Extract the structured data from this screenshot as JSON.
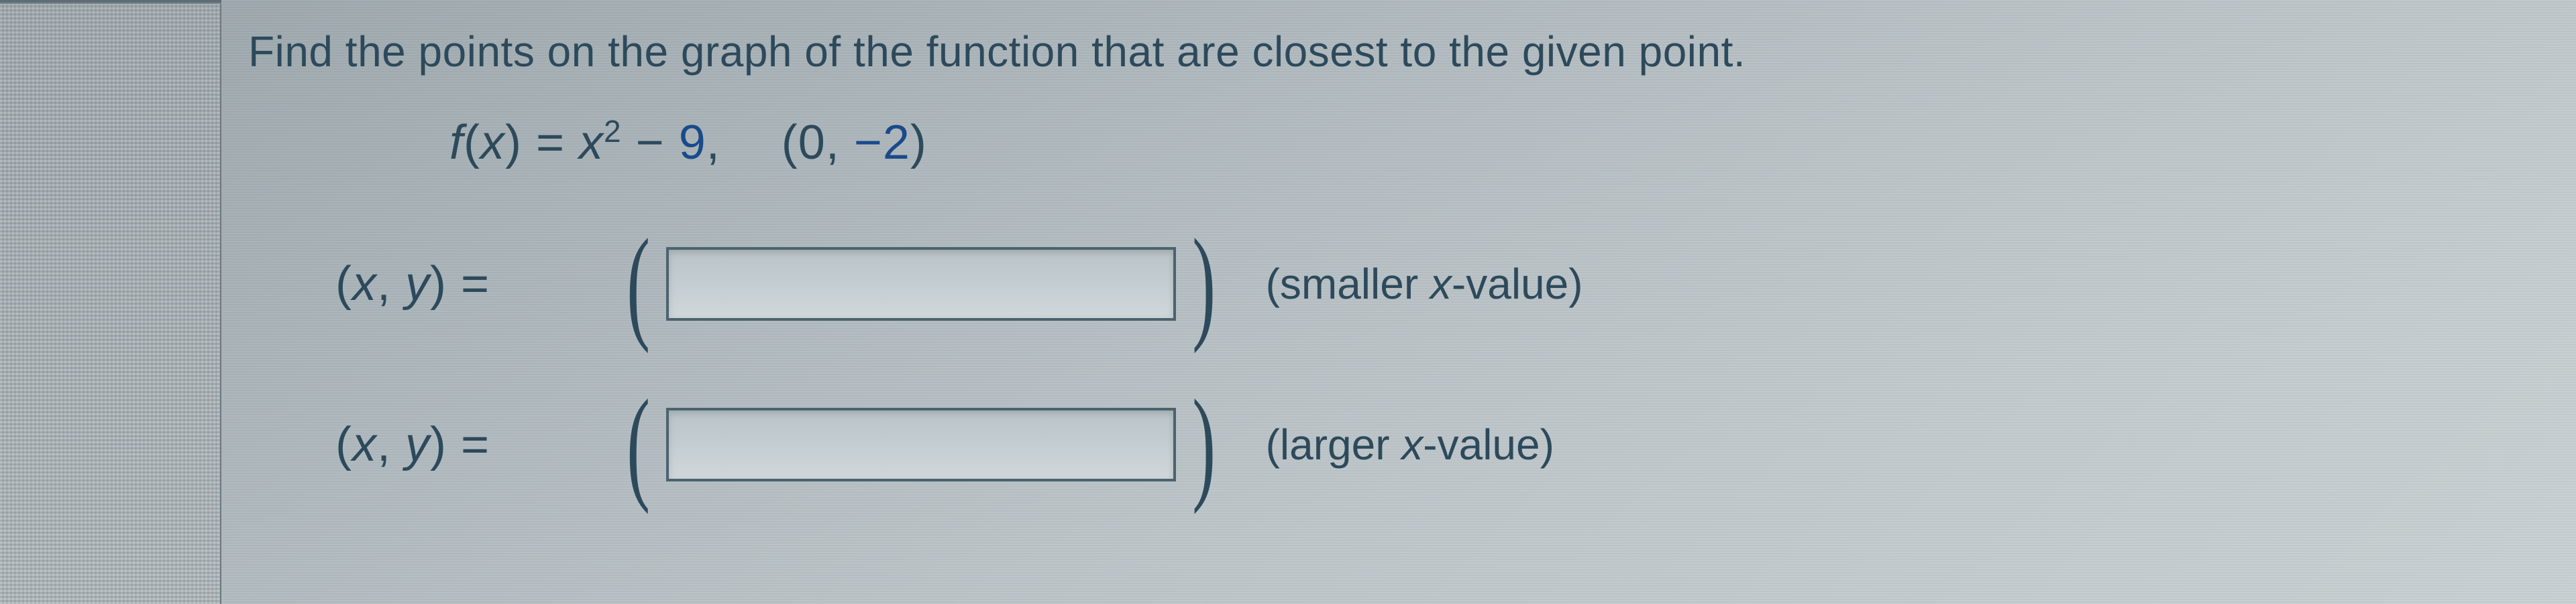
{
  "question": "Find the points on the graph of the function that are closest to the given point.",
  "fn": {
    "f": "f",
    "openParen": "(",
    "x": "x",
    "closeParen": ")",
    "eq": " = ",
    "x2": "x",
    "sup2": "2",
    "minus": " − ",
    "nine": "9",
    "comma": ",",
    "pOpen": "(",
    "zero": "0",
    "comma2": ", ",
    "neg2": "−2",
    "pClose": ")"
  },
  "rows": {
    "xyOpen": "(",
    "xyX": "x",
    "xyComma": ", ",
    "xyY": "y",
    "xyClose": ")",
    "xyEq": "  =",
    "bp_open": "(",
    "bp_close": ")",
    "hintSmaller_pre": "(smaller ",
    "hintSmaller_x": "x",
    "hintSmaller_post": "-value)",
    "hintLarger_pre": "(larger ",
    "hintLarger_x": "x",
    "hintLarger_post": "-value)"
  },
  "colors": {
    "text": "#2d4a5c",
    "accent_blue": "#1a4a8a",
    "input_border": "#4a636f"
  }
}
